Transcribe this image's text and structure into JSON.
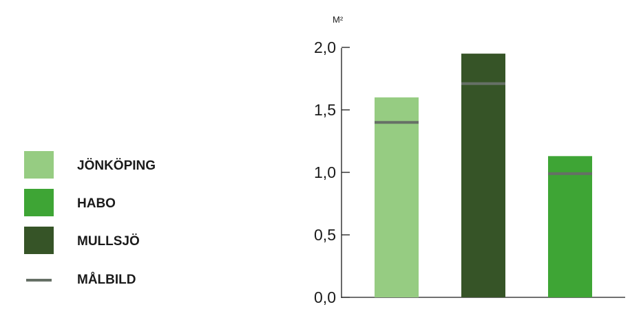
{
  "chart_data": {
    "type": "bar",
    "unit_label": "M²",
    "categories": [
      "JÖNKÖPING",
      "MULLSJÖ",
      "HABO"
    ],
    "values": [
      1.6,
      1.95,
      1.13
    ],
    "target_values": [
      1.4,
      1.71,
      0.99
    ],
    "y_tick_labels": [
      "0,0",
      "0,5",
      "1,0",
      "1,5",
      "2,0"
    ],
    "y_ticks": [
      0,
      0.5,
      1.0,
      1.5,
      2.0
    ],
    "ylim": [
      0,
      2.0
    ],
    "grid": false,
    "legend_position": "left",
    "colors": {
      "JÖNKÖPING": "#96cc82",
      "HABO": "#3ea535",
      "MULLSJÖ": "#365427",
      "target_line": "#667066"
    },
    "legend": [
      {
        "label": "JÖNKÖPING",
        "kind": "swatch",
        "color": "#96cc82"
      },
      {
        "label": "HABO",
        "kind": "swatch",
        "color": "#3ea535"
      },
      {
        "label": "MULLSJÖ",
        "kind": "swatch",
        "color": "#365427"
      },
      {
        "label": "MÅLBILD",
        "kind": "line",
        "color": "#667066"
      }
    ]
  }
}
